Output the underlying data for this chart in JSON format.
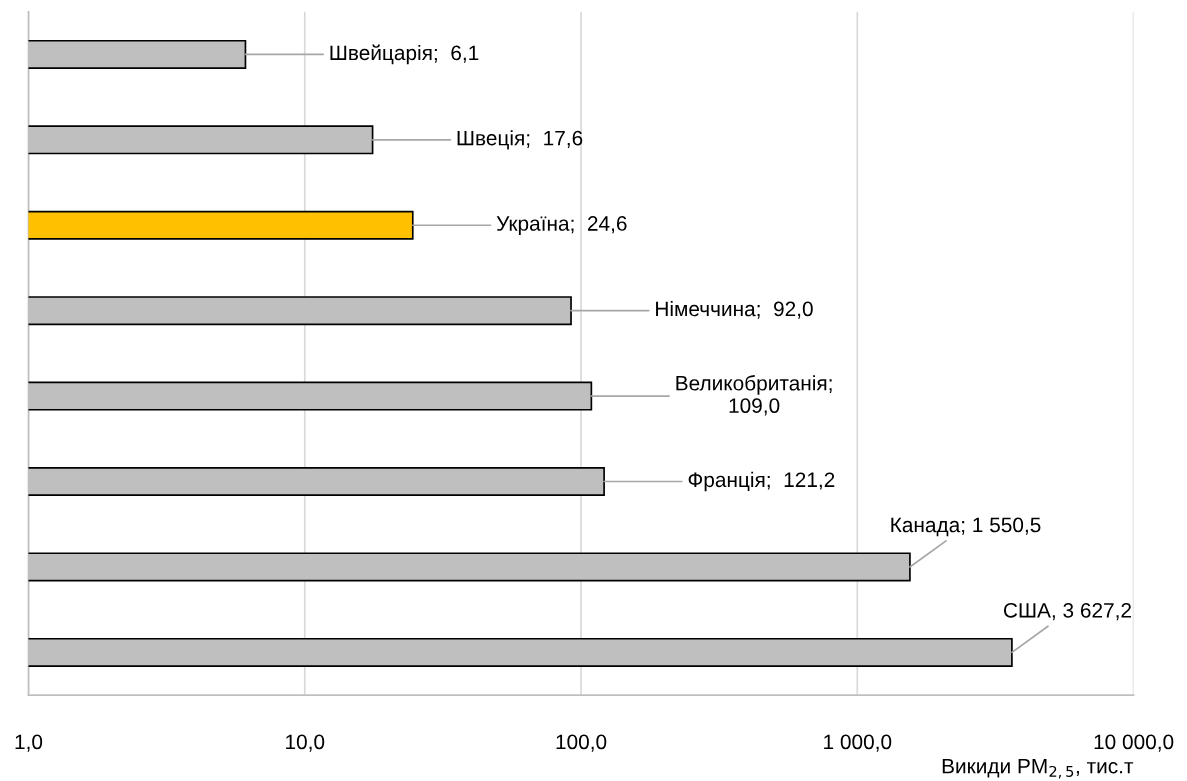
{
  "chart_data": {
    "type": "bar",
    "orientation": "horizontal",
    "log": "x",
    "categories": [
      null,
      null,
      null,
      null,
      null,
      null,
      null,
      null
    ],
    "values": [
      6.1,
      17.6,
      24.6,
      92.0,
      109.0,
      121.2,
      1550.5,
      3627.2
    ],
    "colors": [
      "#bfbfbf",
      "#bfbfbf",
      "#ffc000",
      "#bfbfbf",
      "#bfbfbf",
      "#bfbfbf",
      "#bfbfbf",
      "#bfbfbf"
    ],
    "value_labels": [
      "Швейцарія;  6,1",
      "Швеція;  17,6",
      "Україна;  24,6",
      "Німеччина;  92,0",
      "Великобританія;\n109,0",
      "Франція;  121,2",
      "Канада; 1 550,5",
      "США, 3 627,2"
    ],
    "xlabel": "Викиди PM$_{2,5}$, тис.т",
    "xlim": [
      1,
      10000
    ],
    "xticks": [
      {
        "value": 1,
        "label": "1,0"
      },
      {
        "value": 10,
        "label": "10,0"
      },
      {
        "value": 100,
        "label": "100,0"
      },
      {
        "value": 1000,
        "label": "1 000,0"
      },
      {
        "value": 10000,
        "label": "10 000,0"
      }
    ],
    "grid": "x",
    "legend": false
  }
}
